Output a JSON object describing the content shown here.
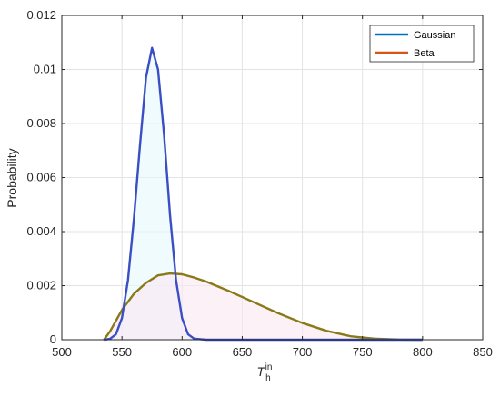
{
  "chart_data": {
    "type": "line",
    "xlabel": "T",
    "xlabel_sub": "h",
    "xlabel_sup": "in",
    "ylabel": "Probability",
    "xlim": [
      500,
      850
    ],
    "ylim": [
      0,
      0.012
    ],
    "xticks": [
      "500",
      "550",
      "600",
      "650",
      "700",
      "750",
      "800",
      "850"
    ],
    "yticks": [
      "0",
      "0.002",
      "0.004",
      "0.006",
      "0.008",
      "0.01",
      "0.012"
    ],
    "legend_position": "top-right",
    "grid": true,
    "series": [
      {
        "name": "Gaussian",
        "color": "#0072BD",
        "x": [
          535,
          540,
          545,
          550,
          555,
          560,
          565,
          570,
          575,
          580,
          585,
          590,
          595,
          600,
          605,
          610,
          620,
          650,
          700,
          750,
          800
        ],
        "y": [
          0.0,
          3e-05,
          0.0002,
          0.0008,
          0.0022,
          0.0045,
          0.0072,
          0.0097,
          0.0108,
          0.01,
          0.0076,
          0.0046,
          0.0022,
          0.0008,
          0.0002,
          4e-05,
          0.0,
          0.0,
          0.0,
          0.0,
          0.0
        ]
      },
      {
        "name": "Beta",
        "color": "#D95319",
        "x": [
          535,
          540,
          550,
          560,
          570,
          580,
          590,
          600,
          610,
          620,
          640,
          660,
          680,
          700,
          720,
          740,
          760,
          780,
          800
        ],
        "y": [
          0.0,
          0.0003,
          0.0011,
          0.0017,
          0.0021,
          0.00238,
          0.00245,
          0.00242,
          0.0023,
          0.00215,
          0.00178,
          0.00138,
          0.00098,
          0.00062,
          0.00033,
          0.00013,
          4e-05,
          5e-06,
          0.0
        ]
      }
    ]
  }
}
